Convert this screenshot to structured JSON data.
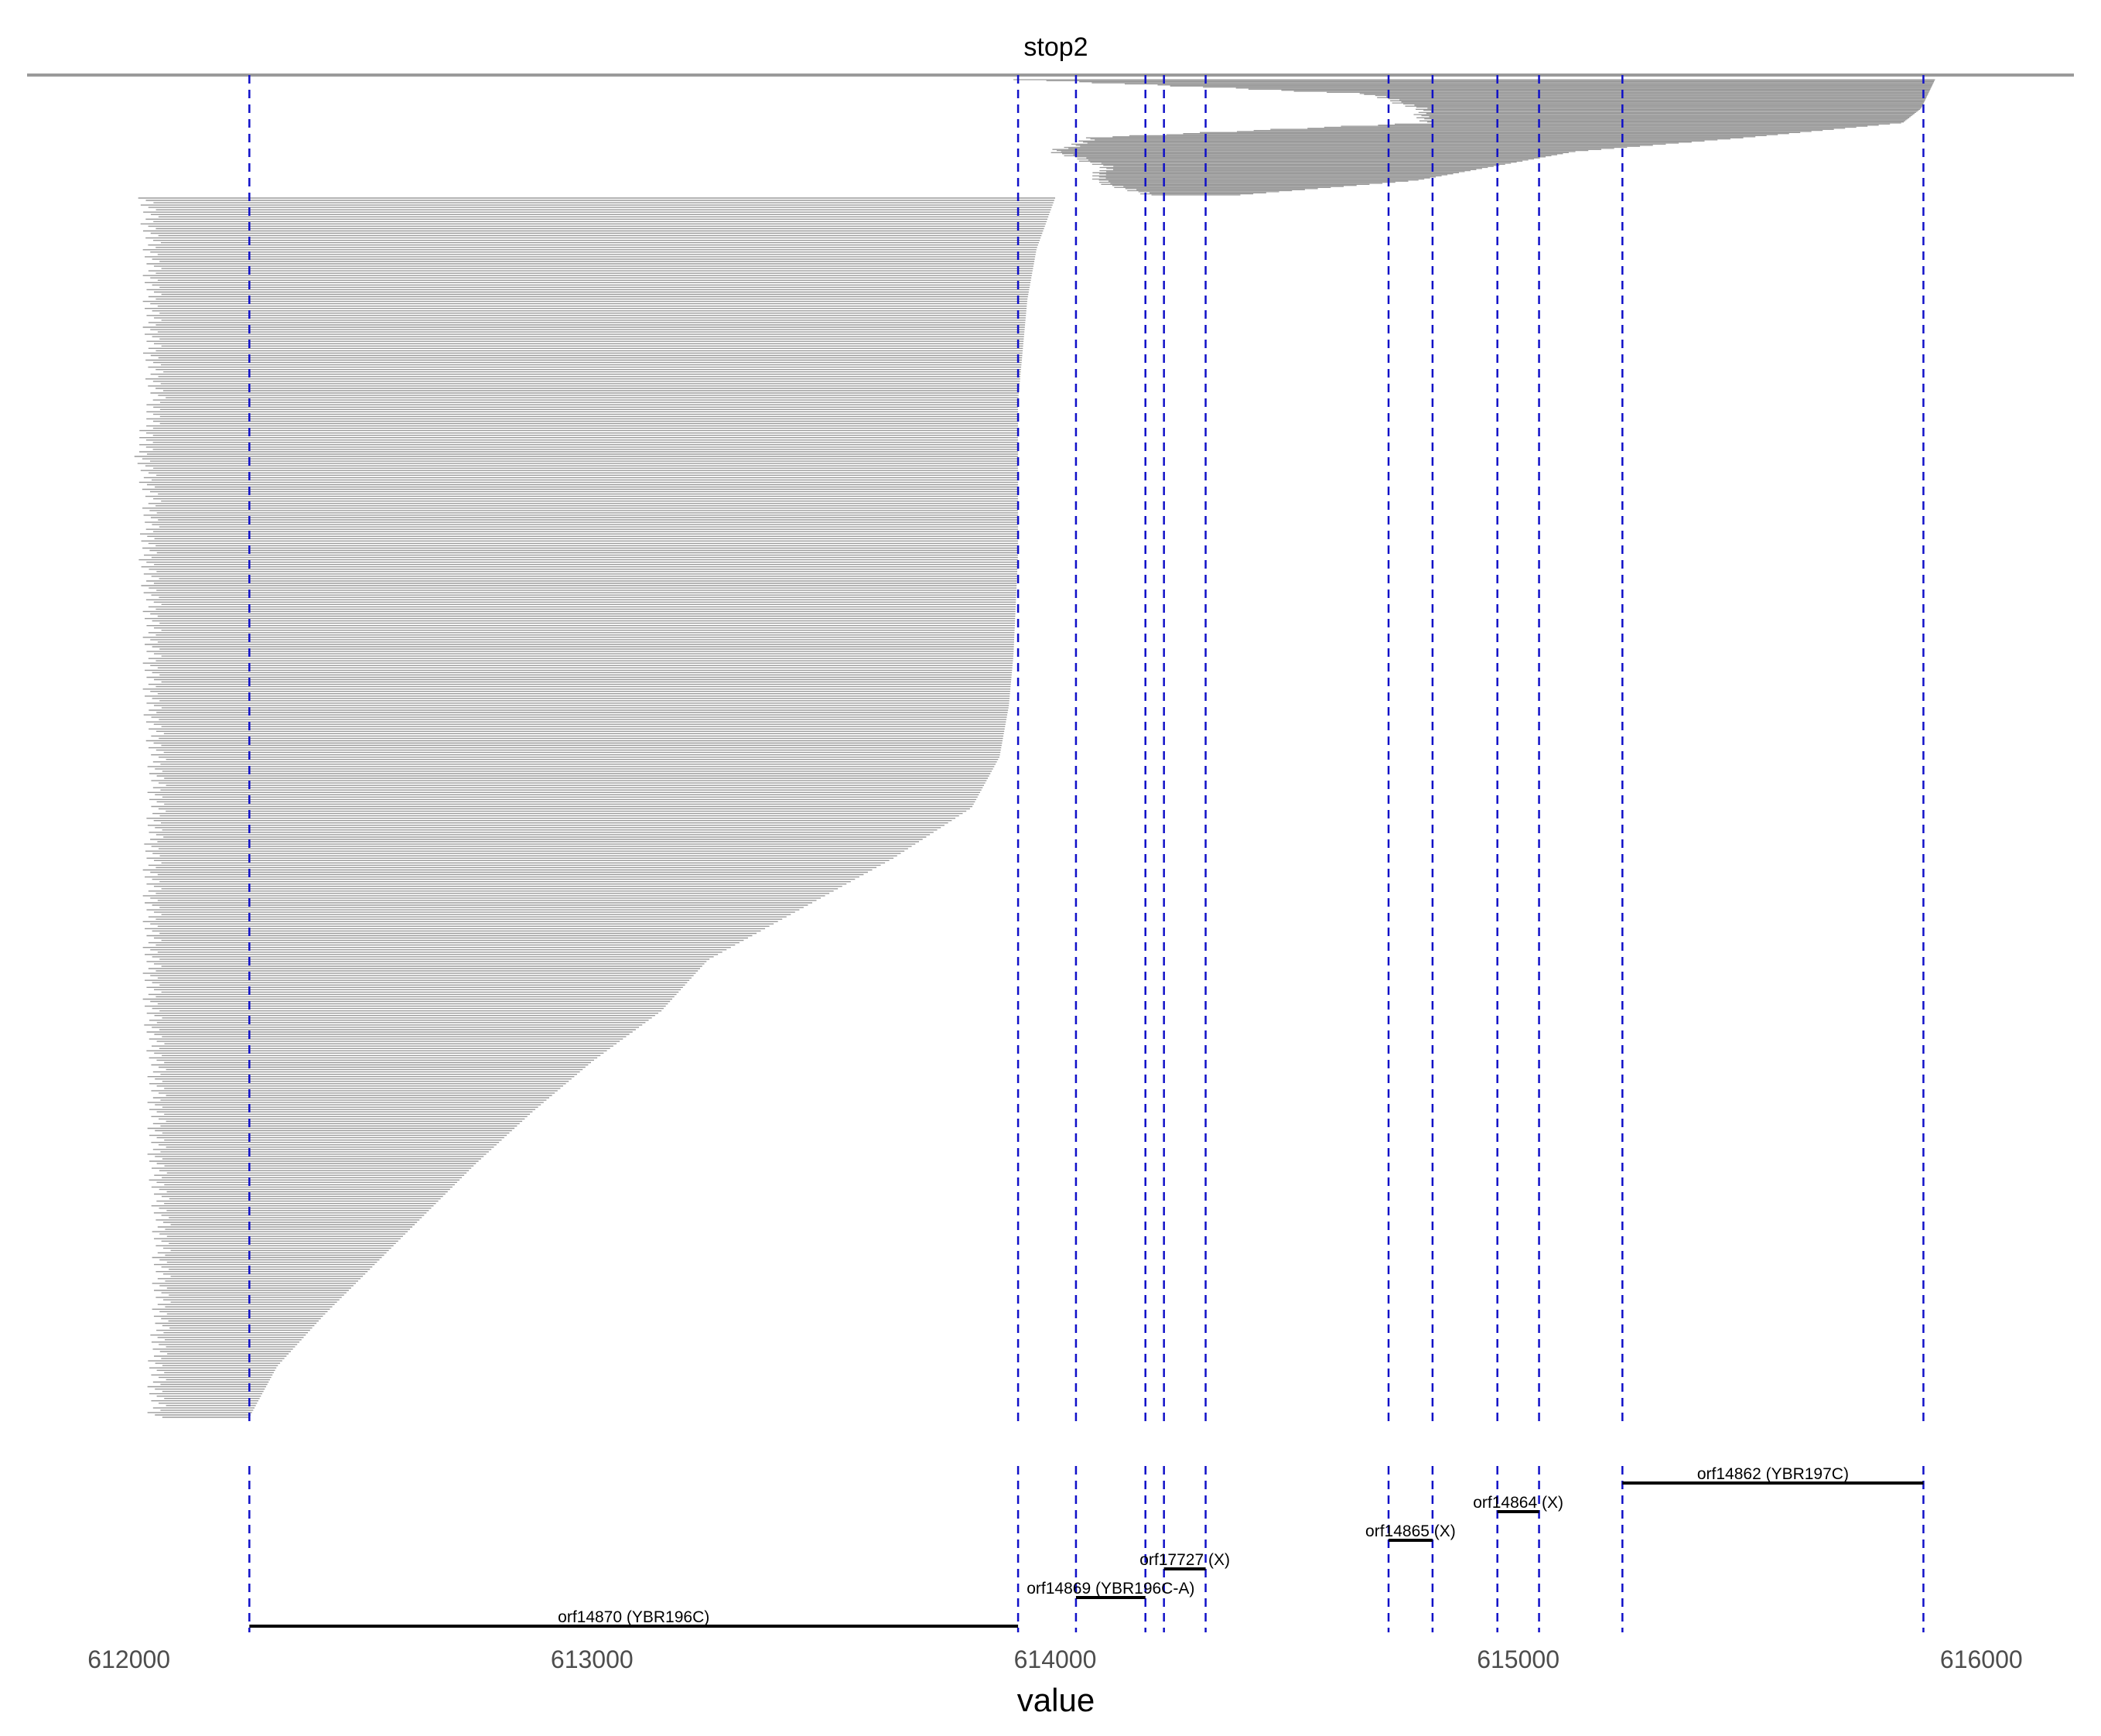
{
  "chart_data": {
    "type": "genome-read-alignment",
    "title": "stop2",
    "xlabel": "value",
    "xlim": [
      611780,
      616200
    ],
    "xticks": [
      612000,
      613000,
      614000,
      615000,
      616000
    ],
    "tick_labels": [
      "612000",
      "613000",
      "614000",
      "615000",
      "616000"
    ],
    "grid": false,
    "colors": {
      "reads": "#9a9a9a",
      "boundaries": "#1010c8",
      "orfs": "#000000"
    },
    "orf_boundaries": [
      612260,
      613920,
      614045,
      614195,
      614235,
      614325,
      614720,
      614815,
      614955,
      615045,
      615225,
      615875
    ],
    "orfs": [
      {
        "label": "orf14862 (YBR197C)",
        "start": 615225,
        "end": 615875,
        "level": 6
      },
      {
        "label": "orf14864 (X)",
        "start": 614955,
        "end": 615045,
        "level": 5
      },
      {
        "label": "orf14865 (X)",
        "start": 614720,
        "end": 614815,
        "level": 4
      },
      {
        "label": "orf17727 (X)",
        "start": 614235,
        "end": 614325,
        "level": 3
      },
      {
        "label": "orf14869 (YBR196C-A)",
        "start": 614045,
        "end": 614195,
        "level": 2
      },
      {
        "label": "orf14870 (YBR196C)",
        "start": 612260,
        "end": 613920,
        "level": 1
      }
    ],
    "reads_upper": [
      {
        "start": 611780,
        "end": 616200
      },
      {
        "start": 613930,
        "end": 615900
      },
      {
        "start": 614680,
        "end": 615885
      },
      {
        "start": 614790,
        "end": 615870
      },
      {
        "start": 614800,
        "end": 615830
      },
      {
        "start": 614090,
        "end": 615500
      },
      {
        "start": 614000,
        "end": 615120
      },
      {
        "start": 614110,
        "end": 614950
      },
      {
        "start": 614090,
        "end": 614780
      },
      {
        "start": 614200,
        "end": 614400
      }
    ],
    "reads_lower": [
      {
        "start": 612040,
        "end": 614000
      },
      {
        "start": 612050,
        "end": 613960
      },
      {
        "start": 612050,
        "end": 613940
      },
      {
        "start": 612050,
        "end": 613930
      },
      {
        "start": 612060,
        "end": 613920
      },
      {
        "start": 612030,
        "end": 613920
      },
      {
        "start": 612050,
        "end": 613920
      },
      {
        "start": 612040,
        "end": 613920
      },
      {
        "start": 612050,
        "end": 613915
      },
      {
        "start": 612050,
        "end": 613910
      },
      {
        "start": 612050,
        "end": 613900
      },
      {
        "start": 612060,
        "end": 613880
      },
      {
        "start": 612060,
        "end": 613820
      },
      {
        "start": 612050,
        "end": 613650
      },
      {
        "start": 612050,
        "end": 613450
      },
      {
        "start": 612050,
        "end": 613250
      },
      {
        "start": 612050,
        "end": 613150
      },
      {
        "start": 612060,
        "end": 613000
      },
      {
        "start": 612060,
        "end": 612870
      },
      {
        "start": 612060,
        "end": 612750
      },
      {
        "start": 612070,
        "end": 612640
      },
      {
        "start": 612070,
        "end": 612530
      },
      {
        "start": 612070,
        "end": 612420
      },
      {
        "start": 612060,
        "end": 612320
      },
      {
        "start": 612060,
        "end": 612260
      }
    ]
  }
}
